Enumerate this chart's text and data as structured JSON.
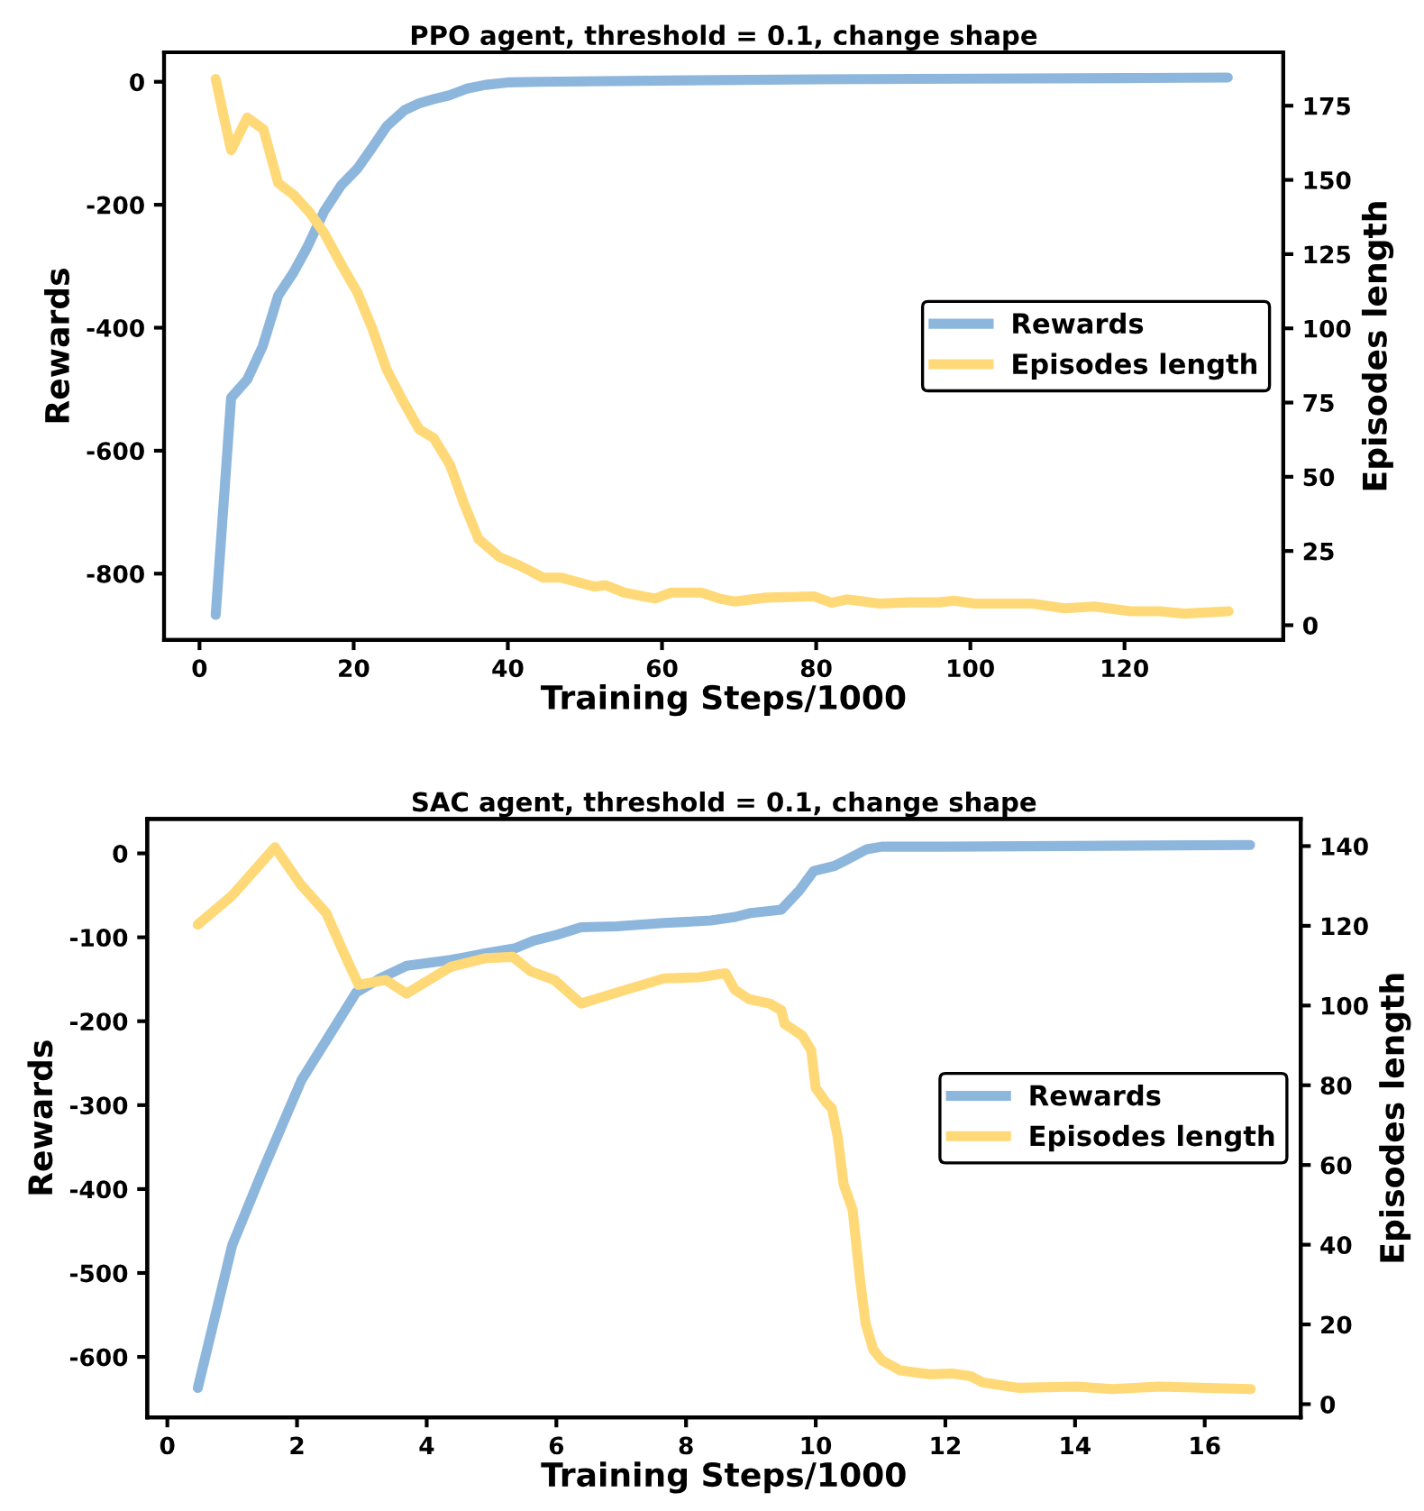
{
  "chart_data": [
    {
      "type": "line",
      "title": "PPO agent, threshold = 0.1, change shape",
      "xlabel": "Training Steps/1000",
      "ylabel": "Rewards",
      "y2label": "Episodes length",
      "xlim": [
        -4.6,
        140.6
      ],
      "ylim": [
        -908,
        48
      ],
      "y2lim": [
        -5,
        193
      ],
      "xticks": [
        0,
        20,
        40,
        60,
        80,
        100,
        120
      ],
      "yticks": [
        -800,
        -600,
        -400,
        -200,
        0
      ],
      "y2ticks": [
        0,
        25,
        50,
        75,
        100,
        125,
        150,
        175
      ],
      "legend": "right",
      "series": [
        {
          "name": "Rewards",
          "color": "#8db6dc",
          "x": [
            2.1,
            4.1,
            6.2,
            8.2,
            10.2,
            12.2,
            13.9,
            16.2,
            18.4,
            20.5,
            22.4,
            24.3,
            26.6,
            28.5,
            30.4,
            32.4,
            34.7,
            37.1,
            40,
            44,
            60,
            80,
            100,
            120,
            133.4
          ],
          "values": [
            -867,
            -514,
            -484,
            -430,
            -348,
            -310,
            -271,
            -210,
            -168,
            -141,
            -107,
            -72,
            -46,
            -35,
            -28,
            -22,
            -11,
            -5,
            -1,
            0,
            2,
            4,
            5,
            6,
            7
          ]
        },
        {
          "name": "Episodes length",
          "color": "#ffd978",
          "axis": "y2",
          "x": [
            2.1,
            4.1,
            6.2,
            8.3,
            10.2,
            12.2,
            14.3,
            16.2,
            18.5,
            20.5,
            22.4,
            24.3,
            26.3,
            28.5,
            30.4,
            32.5,
            34.3,
            36.2,
            38.9,
            41.6,
            44.6,
            47,
            51.2,
            52.7,
            55.1,
            57,
            59.1,
            61.2,
            65.1,
            67.4,
            69.4,
            73.5,
            79.7,
            82,
            84,
            88.2,
            92,
            95.9,
            97.9,
            100.6,
            108,
            112.2,
            116.1,
            120.8,
            124.6,
            127.7,
            133.5
          ],
          "values": [
            184,
            160,
            171,
            167,
            149,
            145,
            139,
            132,
            121,
            112,
            100,
            86,
            76,
            66,
            63,
            54,
            41,
            29,
            23,
            20,
            16,
            16,
            13,
            13.5,
            11,
            10,
            9,
            11,
            11,
            9,
            8,
            9.3,
            9.7,
            7.6,
            8.7,
            7.3,
            7.7,
            7.7,
            8.3,
            7.3,
            7.3,
            5.7,
            6.3,
            4.7,
            4.7,
            3.9,
            4.7
          ]
        }
      ]
    },
    {
      "type": "line",
      "title": "SAC agent, threshold = 0.1, change shape",
      "xlabel": "Training Steps/1000",
      "ylabel": "Rewards",
      "y2label": "Episodes length",
      "xlim": [
        -0.31,
        17.48
      ],
      "ylim": [
        -672,
        41
      ],
      "y2lim": [
        -3.3,
        146.8
      ],
      "xticks": [
        0,
        2,
        4,
        6,
        8,
        10,
        12,
        14,
        16
      ],
      "yticks": [
        -600,
        -500,
        -400,
        -300,
        -200,
        -100,
        0
      ],
      "y2ticks": [
        0,
        20,
        40,
        60,
        80,
        100,
        120,
        140
      ],
      "legend": "right",
      "series": [
        {
          "name": "Rewards",
          "color": "#8db6dc",
          "x": [
            0.47,
            1.0,
            1.46,
            2.07,
            2.45,
            2.91,
            3.28,
            3.69,
            4.37,
            4.92,
            5.37,
            5.65,
            6.01,
            6.38,
            6.93,
            7.66,
            8.38,
            8.74,
            9.0,
            9.47,
            9.74,
            9.97,
            10.29,
            10.47,
            10.79,
            11.02,
            12.0,
            16.7
          ],
          "values": [
            -637,
            -467,
            -380,
            -270,
            -223,
            -166,
            -149,
            -134,
            -127,
            -119,
            -113,
            -104,
            -97,
            -88,
            -87,
            -83,
            -80,
            -76,
            -71,
            -67,
            -45,
            -21,
            -15,
            -8,
            5,
            8,
            8,
            10
          ]
        },
        {
          "name": "Episodes length",
          "color": "#ffd978",
          "axis": "y2",
          "x": [
            0.47,
            1.0,
            1.66,
            2.05,
            2.45,
            2.73,
            2.95,
            3.37,
            3.69,
            4.37,
            4.92,
            5.33,
            5.6,
            5.97,
            6.38,
            7.02,
            7.66,
            8.2,
            8.61,
            8.75,
            8.97,
            9.29,
            9.47,
            9.52,
            9.79,
            9.93,
            10.0,
            10.16,
            10.25,
            10.34,
            10.43,
            10.57,
            10.68,
            10.77,
            10.89,
            11.02,
            11.3,
            11.75,
            12.11,
            12.39,
            12.57,
            13.12,
            14.03,
            14.57,
            15.3,
            16.71
          ],
          "values": [
            120.3,
            127.6,
            139.7,
            130.5,
            123.2,
            112.9,
            105.2,
            106.4,
            103,
            109.7,
            111.9,
            112.2,
            108.6,
            106.4,
            100.5,
            103.7,
            106.8,
            107.1,
            108.1,
            104,
            101.6,
            100.5,
            98.8,
            95.4,
            92.5,
            88.8,
            79.3,
            75.7,
            74.2,
            66.9,
            55.2,
            48.7,
            31.8,
            20.2,
            13.6,
            11,
            8.5,
            7.5,
            7.7,
            7,
            5.5,
            4.1,
            4.4,
            3.8,
            4.4,
            3.8
          ]
        }
      ]
    }
  ]
}
